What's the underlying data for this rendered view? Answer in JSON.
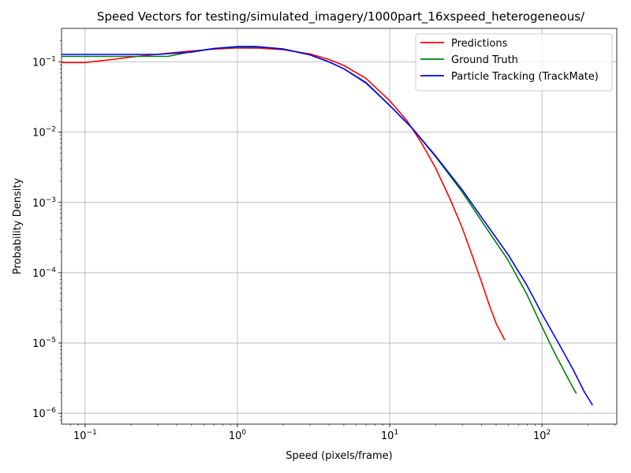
{
  "chart_data": {
    "type": "line",
    "title": "Speed Vectors for testing/simulated_imagery/1000part_16xspeed_heterogeneous/",
    "xlabel": "Speed (pixels/frame)",
    "ylabel": "Probability Density",
    "xscale": "log",
    "yscale": "log",
    "xlim": [
      0.07,
      310
    ],
    "ylim": [
      7e-07,
      0.3
    ],
    "x_ticks": [
      {
        "value": 0.1,
        "base": "10",
        "exp": "−1"
      },
      {
        "value": 1,
        "base": "10",
        "exp": "0"
      },
      {
        "value": 10,
        "base": "10",
        "exp": "1"
      },
      {
        "value": 100,
        "base": "10",
        "exp": "2"
      }
    ],
    "y_ticks": [
      {
        "value": 1e-06,
        "base": "10",
        "exp": "−6"
      },
      {
        "value": 1e-05,
        "base": "10",
        "exp": "−5"
      },
      {
        "value": 0.0001,
        "base": "10",
        "exp": "−4"
      },
      {
        "value": 0.001,
        "base": "10",
        "exp": "−3"
      },
      {
        "value": 0.01,
        "base": "10",
        "exp": "−2"
      },
      {
        "value": 0.1,
        "base": "10",
        "exp": "−1"
      }
    ],
    "grid": true,
    "legend_position": "top-right",
    "series": [
      {
        "name": "Predictions",
        "color": "#ff0000",
        "points": [
          [
            0.07,
            0.098
          ],
          [
            0.1,
            0.098
          ],
          [
            0.15,
            0.108
          ],
          [
            0.22,
            0.12
          ],
          [
            0.35,
            0.133
          ],
          [
            0.5,
            0.143
          ],
          [
            0.7,
            0.152
          ],
          [
            1.0,
            0.158
          ],
          [
            1.4,
            0.157
          ],
          [
            2.0,
            0.149
          ],
          [
            3.0,
            0.13
          ],
          [
            4.0,
            0.108
          ],
          [
            5.0,
            0.089
          ],
          [
            7.0,
            0.058
          ],
          [
            10.0,
            0.028
          ],
          [
            13.0,
            0.0145
          ],
          [
            16.0,
            0.0073
          ],
          [
            20.0,
            0.0031
          ],
          [
            25.0,
            0.0011
          ],
          [
            30.0,
            0.00043
          ],
          [
            35.0,
            0.00017
          ],
          [
            40.0,
            7.5e-05
          ],
          [
            45.0,
            3.5e-05
          ],
          [
            50.0,
            1.9e-05
          ],
          [
            57.0,
            1.1e-05
          ]
        ]
      },
      {
        "name": "Ground Truth",
        "color": "#008000",
        "points": [
          [
            0.07,
            0.12
          ],
          [
            0.1,
            0.12
          ],
          [
            0.2,
            0.12
          ],
          [
            0.35,
            0.12
          ],
          [
            0.5,
            0.14
          ],
          [
            0.7,
            0.155
          ],
          [
            1.0,
            0.162
          ],
          [
            1.4,
            0.163
          ],
          [
            2.0,
            0.152
          ],
          [
            3.0,
            0.126
          ],
          [
            4.0,
            0.1
          ],
          [
            5.0,
            0.08
          ],
          [
            7.0,
            0.051
          ],
          [
            10.0,
            0.024
          ],
          [
            14.0,
            0.0115
          ],
          [
            20.0,
            0.0045
          ],
          [
            30.0,
            0.0014
          ],
          [
            40.0,
            0.00055
          ],
          [
            60.0,
            0.00015
          ],
          [
            80.0,
            4.8e-05
          ],
          [
            100.0,
            1.7e-05
          ],
          [
            120.0,
            7.5e-06
          ],
          [
            150.0,
            3e-06
          ],
          [
            168.0,
            1.9e-06
          ]
        ]
      },
      {
        "name": "Particle Tracking (TrackMate)",
        "color": "#0000ff",
        "points": [
          [
            0.07,
            0.128
          ],
          [
            0.1,
            0.128
          ],
          [
            0.2,
            0.128
          ],
          [
            0.3,
            0.128
          ],
          [
            0.5,
            0.138
          ],
          [
            0.7,
            0.155
          ],
          [
            1.0,
            0.165
          ],
          [
            1.3,
            0.166
          ],
          [
            2.0,
            0.153
          ],
          [
            3.0,
            0.126
          ],
          [
            4.0,
            0.1
          ],
          [
            5.0,
            0.08
          ],
          [
            7.0,
            0.05
          ],
          [
            10.0,
            0.024
          ],
          [
            14.0,
            0.0115
          ],
          [
            20.0,
            0.0046
          ],
          [
            30.0,
            0.0015
          ],
          [
            40.0,
            0.00062
          ],
          [
            60.0,
            0.00018
          ],
          [
            80.0,
            6.5e-05
          ],
          [
            100.0,
            2.6e-05
          ],
          [
            130.0,
            9.5e-06
          ],
          [
            160.0,
            4.2e-06
          ],
          [
            190.0,
            2e-06
          ],
          [
            215.0,
            1.3e-06
          ]
        ]
      }
    ]
  }
}
